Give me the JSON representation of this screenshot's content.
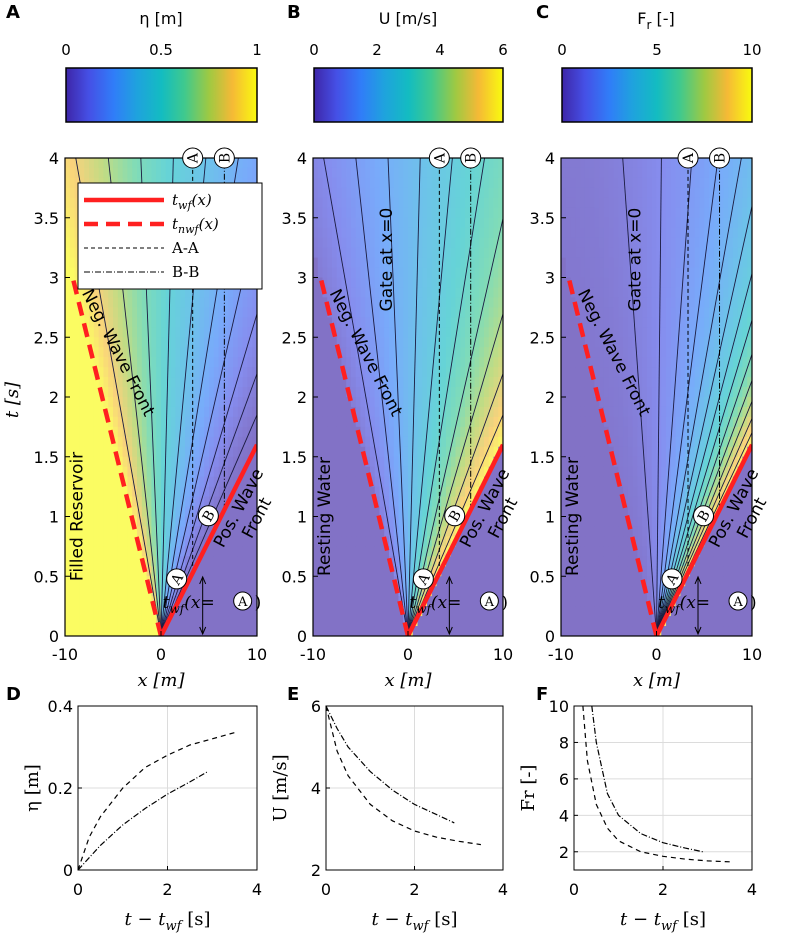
{
  "figure": {
    "panels": {
      "A": {
        "label": "A",
        "cbar_title": "η [m]",
        "cbar_ticks": [
          "0",
          "0.5",
          "1"
        ]
      },
      "B": {
        "label": "B",
        "cbar_title": "U [m/s]",
        "cbar_ticks": [
          "0",
          "2",
          "4",
          "6"
        ]
      },
      "C": {
        "label": "C",
        "cbar_title": "F",
        "cbar_title_sub": "r",
        "cbar_title_suffix": " [-]",
        "cbar_ticks": [
          "0",
          "5",
          "10"
        ]
      },
      "D": {
        "label": "D"
      },
      "E": {
        "label": "E"
      },
      "F": {
        "label": "F"
      }
    },
    "top_axes": {
      "xlabel": "x [m]",
      "ylabel": "t [s]",
      "xticks": [
        "-10",
        "0",
        "10"
      ],
      "yticks": [
        "0",
        "0.5",
        "1",
        "1.5",
        "2",
        "2.5",
        "3",
        "3.5",
        "4"
      ]
    },
    "annotations": {
      "neg_wave": "Neg. Wave Front",
      "pos_wave_1": "Pos. Wave",
      "pos_wave_2": "Front",
      "gate": "Gate at x=0",
      "filled": "Filled Reservoir",
      "resting": "Resting Water",
      "twf_label": "t",
      "twf_sub": "wf",
      "twf_rest": "(x=",
      "twf_close": ")",
      "marker_a": "A",
      "marker_b": "B"
    },
    "legend": {
      "entries": [
        {
          "main": "t",
          "sub": "wf",
          "rest": "(x)"
        },
        {
          "main": "t",
          "sub": "nwf",
          "rest": "(x)"
        },
        {
          "main": "A-A",
          "sub": "",
          "rest": ""
        },
        {
          "main": "B-B",
          "sub": "",
          "rest": ""
        }
      ]
    },
    "bottom_axes": {
      "xlabel_main": "t − t",
      "xlabel_sub": "wf",
      "xlabel_unit": " [s]",
      "xticks": [
        "0",
        "2",
        "4"
      ],
      "ylabels": [
        "η [m]",
        "U [m/s]",
        "Fr [-]"
      ]
    },
    "colors": {
      "wave_front": "#ff2020",
      "contour": "#1b1b40"
    }
  },
  "chart_data": [
    {
      "panel": "A",
      "type": "heatmap",
      "title": "η [m]",
      "xlabel": "x [m]",
      "ylabel": "t [s]",
      "xlim": [
        -10,
        10
      ],
      "ylim": [
        0,
        4
      ],
      "clim": [
        0,
        1
      ],
      "lines": {
        "positive_wave_front": [
          [
            0,
            0
          ],
          [
            10,
            1.6
          ]
        ],
        "negative_wave_front": [
          [
            0,
            0
          ],
          [
            -9.2,
            3
          ]
        ],
        "section_A": 3.3,
        "section_B": 6.6
      },
      "legend": [
        "t_wf(x)",
        "t_nwf(x)",
        "A-A",
        "B-B"
      ]
    },
    {
      "panel": "B",
      "type": "heatmap",
      "title": "U [m/s]",
      "xlabel": "x [m]",
      "ylabel": "t [s]",
      "xlim": [
        -10,
        10
      ],
      "ylim": [
        0,
        4
      ],
      "clim": [
        0,
        6
      ]
    },
    {
      "panel": "C",
      "type": "heatmap",
      "title": "Fr [-]",
      "xlabel": "x [m]",
      "ylabel": "t [s]",
      "xlim": [
        -10,
        10
      ],
      "ylim": [
        0,
        4
      ],
      "clim": [
        0,
        10
      ]
    },
    {
      "panel": "D",
      "type": "line",
      "xlabel": "t - t_wf [s]",
      "ylabel": "η [m]",
      "xlim": [
        0,
        4
      ],
      "ylim": [
        0,
        0.4
      ],
      "xticks": [
        0,
        2,
        4
      ],
      "yticks": [
        0,
        0.2,
        0.4
      ],
      "series": [
        {
          "name": "A-A",
          "style": "dashed",
          "x": [
            0,
            0.25,
            0.5,
            1,
            1.5,
            2,
            2.5,
            3,
            3.5
          ],
          "y": [
            0,
            0.08,
            0.13,
            0.2,
            0.25,
            0.28,
            0.305,
            0.32,
            0.335
          ]
        },
        {
          "name": "B-B",
          "style": "dashdot",
          "x": [
            0,
            0.25,
            0.5,
            1,
            1.5,
            2,
            2.5,
            2.9
          ],
          "y": [
            0,
            0.03,
            0.06,
            0.11,
            0.15,
            0.185,
            0.215,
            0.24
          ]
        }
      ]
    },
    {
      "panel": "E",
      "type": "line",
      "xlabel": "t - t_wf [s]",
      "ylabel": "U [m/s]",
      "xlim": [
        0,
        4
      ],
      "ylim": [
        2,
        6
      ],
      "xticks": [
        0,
        2,
        4
      ],
      "yticks": [
        2,
        4,
        6
      ],
      "series": [
        {
          "name": "A-A",
          "style": "dashed",
          "x": [
            0,
            0.25,
            0.5,
            1,
            1.5,
            2,
            2.5,
            3,
            3.5
          ],
          "y": [
            6,
            4.9,
            4.3,
            3.6,
            3.2,
            2.95,
            2.8,
            2.7,
            2.62
          ]
        },
        {
          "name": "B-B",
          "style": "dashdot",
          "x": [
            0,
            0.25,
            0.5,
            1,
            1.5,
            2,
            2.5,
            2.9
          ],
          "y": [
            6,
            5.45,
            5.0,
            4.4,
            3.95,
            3.6,
            3.35,
            3.15
          ]
        }
      ]
    },
    {
      "panel": "F",
      "type": "line",
      "xlabel": "t - t_wf [s]",
      "ylabel": "Fr [-]",
      "xlim": [
        0,
        4
      ],
      "ylim": [
        1,
        10
      ],
      "xticks": [
        0,
        2,
        4
      ],
      "yticks": [
        2,
        4,
        6,
        8,
        10
      ],
      "series": [
        {
          "name": "A-A",
          "style": "dashed",
          "x": [
            0.2,
            0.3,
            0.5,
            0.75,
            1,
            1.5,
            2,
            2.5,
            3,
            3.5
          ],
          "y": [
            10,
            7,
            4.6,
            3.3,
            2.6,
            2.0,
            1.75,
            1.6,
            1.5,
            1.45
          ]
        },
        {
          "name": "B-B",
          "style": "dashdot",
          "x": [
            0.4,
            0.5,
            0.75,
            1,
            1.5,
            2,
            2.5,
            2.9
          ],
          "y": [
            10,
            8.0,
            5.2,
            4.0,
            3.0,
            2.5,
            2.2,
            2.0
          ]
        }
      ]
    }
  ]
}
